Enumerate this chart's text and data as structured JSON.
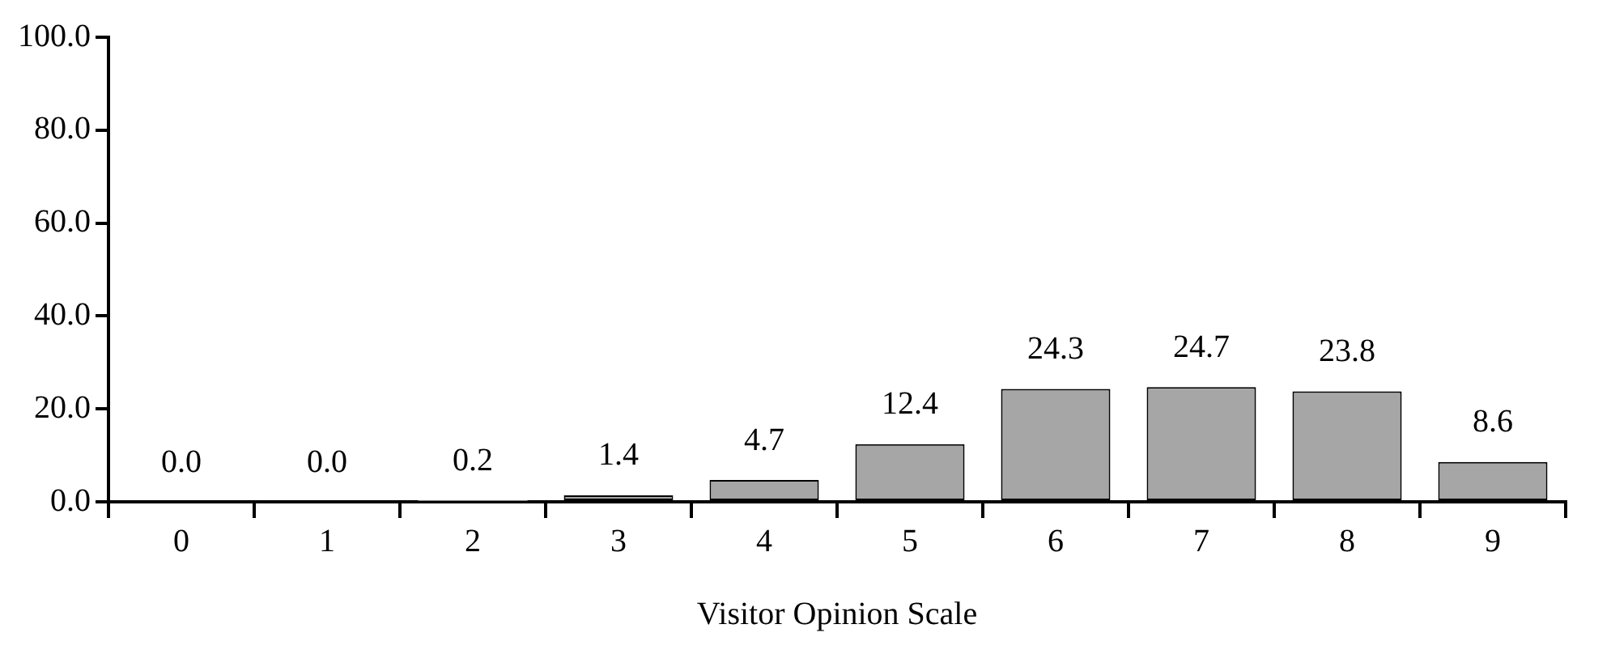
{
  "chart_data": {
    "type": "bar",
    "xlabel": "Visitor Opinion Scale",
    "categories": [
      "0",
      "1",
      "2",
      "3",
      "4",
      "5",
      "6",
      "7",
      "8",
      "9"
    ],
    "values": [
      0.0,
      0.0,
      0.2,
      1.4,
      4.7,
      12.4,
      24.3,
      24.7,
      23.8,
      8.6
    ],
    "value_labels": [
      "0.0",
      "0.0",
      "0.2",
      "1.4",
      "4.7",
      "12.4",
      "24.3",
      "24.7",
      "23.8",
      "8.6"
    ],
    "color": "#a6a6a6",
    "ylim": [
      0,
      100
    ],
    "yticks": [
      {
        "value": 0,
        "label": "0.0"
      },
      {
        "value": 20,
        "label": "20.0"
      },
      {
        "value": 40,
        "label": "40.0"
      },
      {
        "value": 60,
        "label": "60.0"
      },
      {
        "value": 80,
        "label": "80.0"
      },
      {
        "value": 100,
        "label": "100.0"
      }
    ],
    "grid": false,
    "legend": false
  }
}
